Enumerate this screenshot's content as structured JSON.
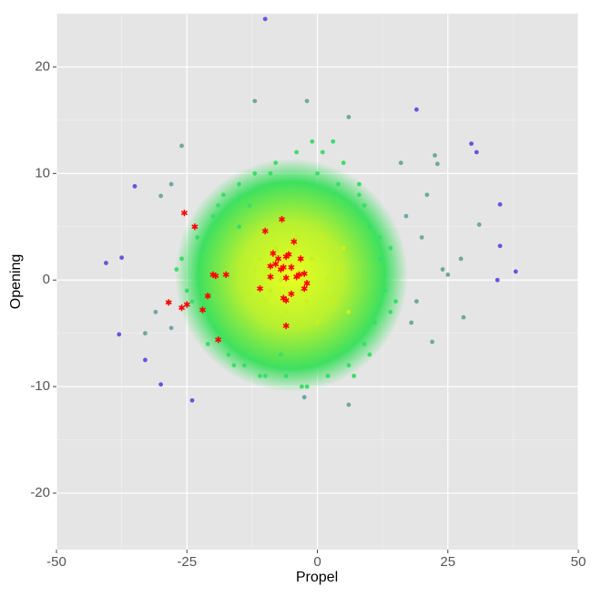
{
  "chart_data": {
    "type": "scatter",
    "x_label": "Propel",
    "y_label": "Opening",
    "xlim": [
      -50,
      50
    ],
    "ylim": [
      -25.3,
      25
    ],
    "xticks": [
      -50,
      -25,
      0,
      25,
      50
    ],
    "yticks": [
      -20,
      -10,
      0,
      10,
      20
    ],
    "xminor": [
      -37.5,
      -12.5,
      12.5,
      37.5
    ],
    "yminor": [
      -25,
      -15,
      -5,
      5,
      15,
      25
    ],
    "grid": true,
    "series": [
      {
        "color": "#c8f020",
        "marker": "dot",
        "x": [
          -5,
          -3,
          -1,
          -8,
          -10,
          2,
          4,
          -6,
          0,
          -4,
          -12,
          -2,
          3,
          -7,
          5,
          -9,
          1,
          -11,
          6,
          -13
        ],
        "y": [
          1,
          -1,
          2,
          3,
          -2,
          0,
          1,
          -3,
          -4,
          4,
          1,
          -2,
          -2,
          0,
          3,
          -1,
          4,
          2,
          -3,
          -1
        ]
      },
      {
        "color": "#3ddc6a",
        "marker": "dot",
        "x": [
          -20,
          -22,
          -18,
          -24,
          -15,
          -12,
          -8,
          -4,
          0,
          4,
          8,
          10,
          12,
          13,
          11,
          9,
          6,
          2,
          -2,
          -6,
          -10,
          -14,
          -17,
          -21,
          -25,
          -26,
          -23,
          -19,
          -16,
          -13,
          5,
          9,
          12,
          14,
          -3,
          -9,
          1,
          7,
          -7,
          -1,
          3,
          -11,
          -15,
          -27,
          14,
          15,
          10,
          8
        ],
        "y": [
          6,
          3,
          8,
          -2,
          9,
          10,
          11,
          12,
          10,
          9,
          8,
          5,
          2,
          -1,
          -4,
          -6,
          -8,
          -9,
          -10,
          -9,
          -9,
          -8,
          -7,
          -6,
          -1,
          2,
          4,
          7,
          -8,
          7,
          11,
          7,
          4,
          -3,
          -10,
          10,
          12,
          -9,
          -7,
          13,
          13,
          -9,
          5,
          1,
          3,
          -2,
          -7,
          9
        ]
      },
      {
        "color": "#6fa8a0",
        "marker": "dot",
        "x": [
          -12,
          -2,
          6,
          -26,
          22.5,
          23,
          16,
          -28,
          31,
          27.5,
          22,
          -33,
          -30,
          -2.5,
          28,
          17,
          20,
          24,
          19,
          21,
          -31,
          -28,
          18,
          25,
          6
        ],
        "y": [
          16.8,
          16.8,
          15.3,
          12.6,
          11.7,
          10.9,
          11,
          9,
          5.2,
          2,
          -5.8,
          -5,
          7.9,
          -11,
          -3.5,
          6,
          4,
          1,
          -2,
          8,
          -3,
          -4.5,
          -4,
          0.5,
          -11.7
        ]
      },
      {
        "color": "#6655dd",
        "marker": "dot",
        "x": [
          -10,
          19,
          29.5,
          30.5,
          -35,
          35,
          -37.5,
          -40.5,
          35,
          38,
          34.5,
          -38,
          -33,
          -30,
          -24
        ],
        "y": [
          24.5,
          16,
          12.8,
          12,
          8.8,
          7.1,
          2.1,
          1.6,
          3.2,
          0.8,
          0,
          -5.1,
          -7.5,
          -9.8,
          -11.3
        ]
      },
      {
        "color": "#ff0000",
        "marker": "star",
        "x": [
          -25.5,
          -23.5,
          -10,
          -6.8,
          -4.5,
          -8.5,
          -7.5,
          -6,
          -5.5,
          -3.2,
          -9,
          -8,
          -7,
          -6.5,
          -5,
          -3.5,
          -2.5,
          -4,
          -2,
          -2.5,
          -6,
          -9,
          -11,
          -5,
          -6.5,
          -6,
          -6,
          -17.5,
          -20,
          -19.5,
          -21,
          -22,
          -25,
          -26,
          -28.5,
          -19
        ],
        "y": [
          6.3,
          5,
          4.6,
          5.7,
          3.6,
          2.5,
          2,
          2.2,
          2.4,
          2,
          1.3,
          1.5,
          1,
          1.2,
          1.2,
          0.5,
          0.6,
          0.3,
          -0.3,
          -0.8,
          0.2,
          0.3,
          -0.8,
          -1.3,
          -1.7,
          -1.9,
          -4.3,
          0.5,
          0.5,
          0.4,
          -1.5,
          -2.8,
          -2.3,
          -2.6,
          -2.1,
          -5.6
        ]
      }
    ]
  }
}
